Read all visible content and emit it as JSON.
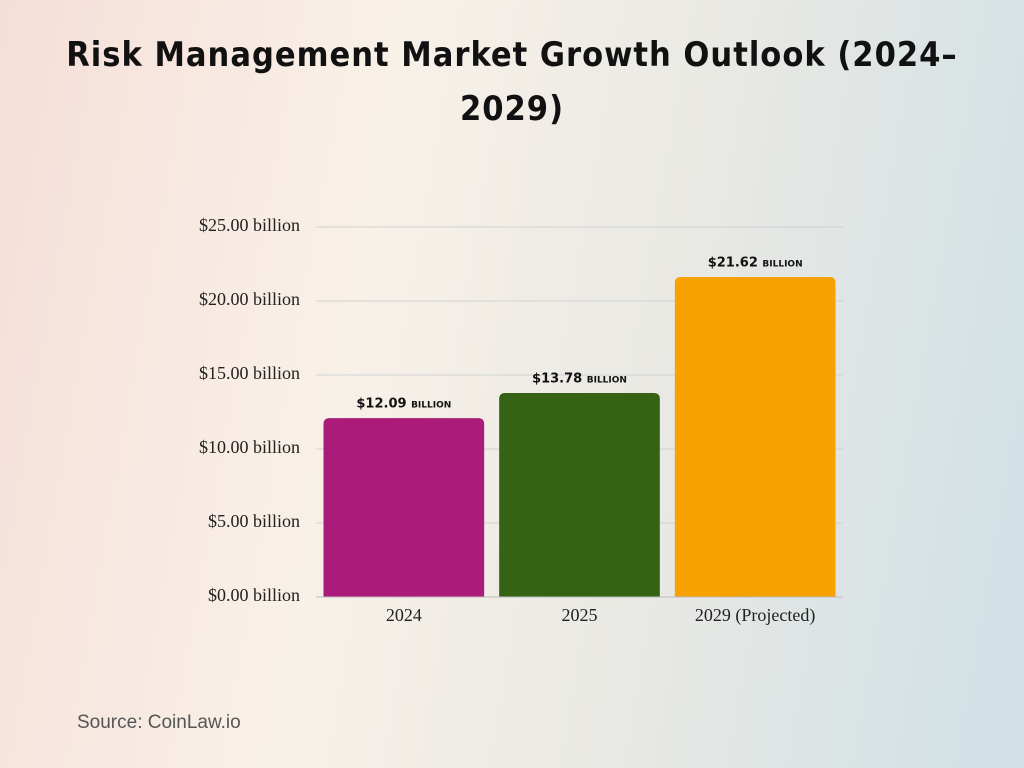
{
  "chart_data": {
    "type": "bar",
    "title": "Risk Management Market Growth Outlook (2024–2029)",
    "categories": [
      "2024",
      "2025",
      "2029 (Projected)"
    ],
    "values": [
      12.09,
      13.78,
      21.62
    ],
    "value_labels": [
      "$12.09 billion",
      "$13.78 billion",
      "$21.62 billion"
    ],
    "colors": [
      "#ab1c7a",
      "#356214",
      "#f7a200"
    ],
    "ylim": [
      0,
      25
    ],
    "yticks": [
      {
        "value": 0,
        "label": "$0.00 billion"
      },
      {
        "value": 5,
        "label": "$5.00 billion"
      },
      {
        "value": 10,
        "label": "$10.00 billion"
      },
      {
        "value": 15,
        "label": "$15.00 billion"
      },
      {
        "value": 20,
        "label": "$20.00 billion"
      },
      {
        "value": 25,
        "label": "$25.00 billion"
      }
    ],
    "grid": true,
    "source": "Source: CoinLaw.io"
  }
}
